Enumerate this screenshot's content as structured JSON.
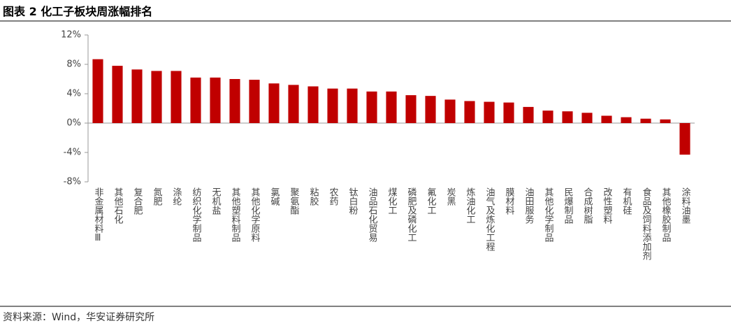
{
  "chart_data": {
    "type": "bar",
    "title": "图表 2 化工子板块周涨幅排名",
    "source": "资料来源：Wind，华安证券研究所",
    "categories": [
      "非金属材料Ⅲ",
      "其他石化",
      "复合肥",
      "氮肥",
      "涤纶",
      "纺织化学制品",
      "无机盐",
      "其他塑料制品",
      "其他化学原料",
      "氯碱",
      "聚氨酯",
      "粘胶",
      "农药",
      "钛白粉",
      "油品石化贸易",
      "煤化工",
      "磷肥及磷化工",
      "氟化工",
      "炭黑",
      "炼油化工",
      "油气及炼化工程",
      "膜材料",
      "油田服务",
      "其他化学制品",
      "民爆制品",
      "合成树脂",
      "改性塑料",
      "有机硅",
      "食品及饲料添加剂",
      "其他橡胶制品",
      "涂料油墨"
    ],
    "values": [
      8.7,
      7.8,
      7.3,
      7.1,
      7.1,
      6.2,
      6.2,
      6.0,
      5.9,
      5.4,
      5.2,
      5.0,
      4.7,
      4.7,
      4.3,
      4.3,
      3.8,
      3.7,
      3.2,
      3.0,
      2.9,
      2.8,
      2.2,
      1.7,
      1.6,
      1.4,
      1.0,
      0.8,
      0.6,
      0.5,
      -4.3
    ],
    "color": "#c00000",
    "ylim": [
      -8,
      12
    ],
    "yticks": [
      {
        "value": -8,
        "label": "-8%"
      },
      {
        "value": -4,
        "label": "-4%"
      },
      {
        "value": 0,
        "label": "0%"
      },
      {
        "value": 4,
        "label": "4%"
      },
      {
        "value": 8,
        "label": "8%"
      },
      {
        "value": 12,
        "label": "12%"
      }
    ],
    "grid": false
  }
}
